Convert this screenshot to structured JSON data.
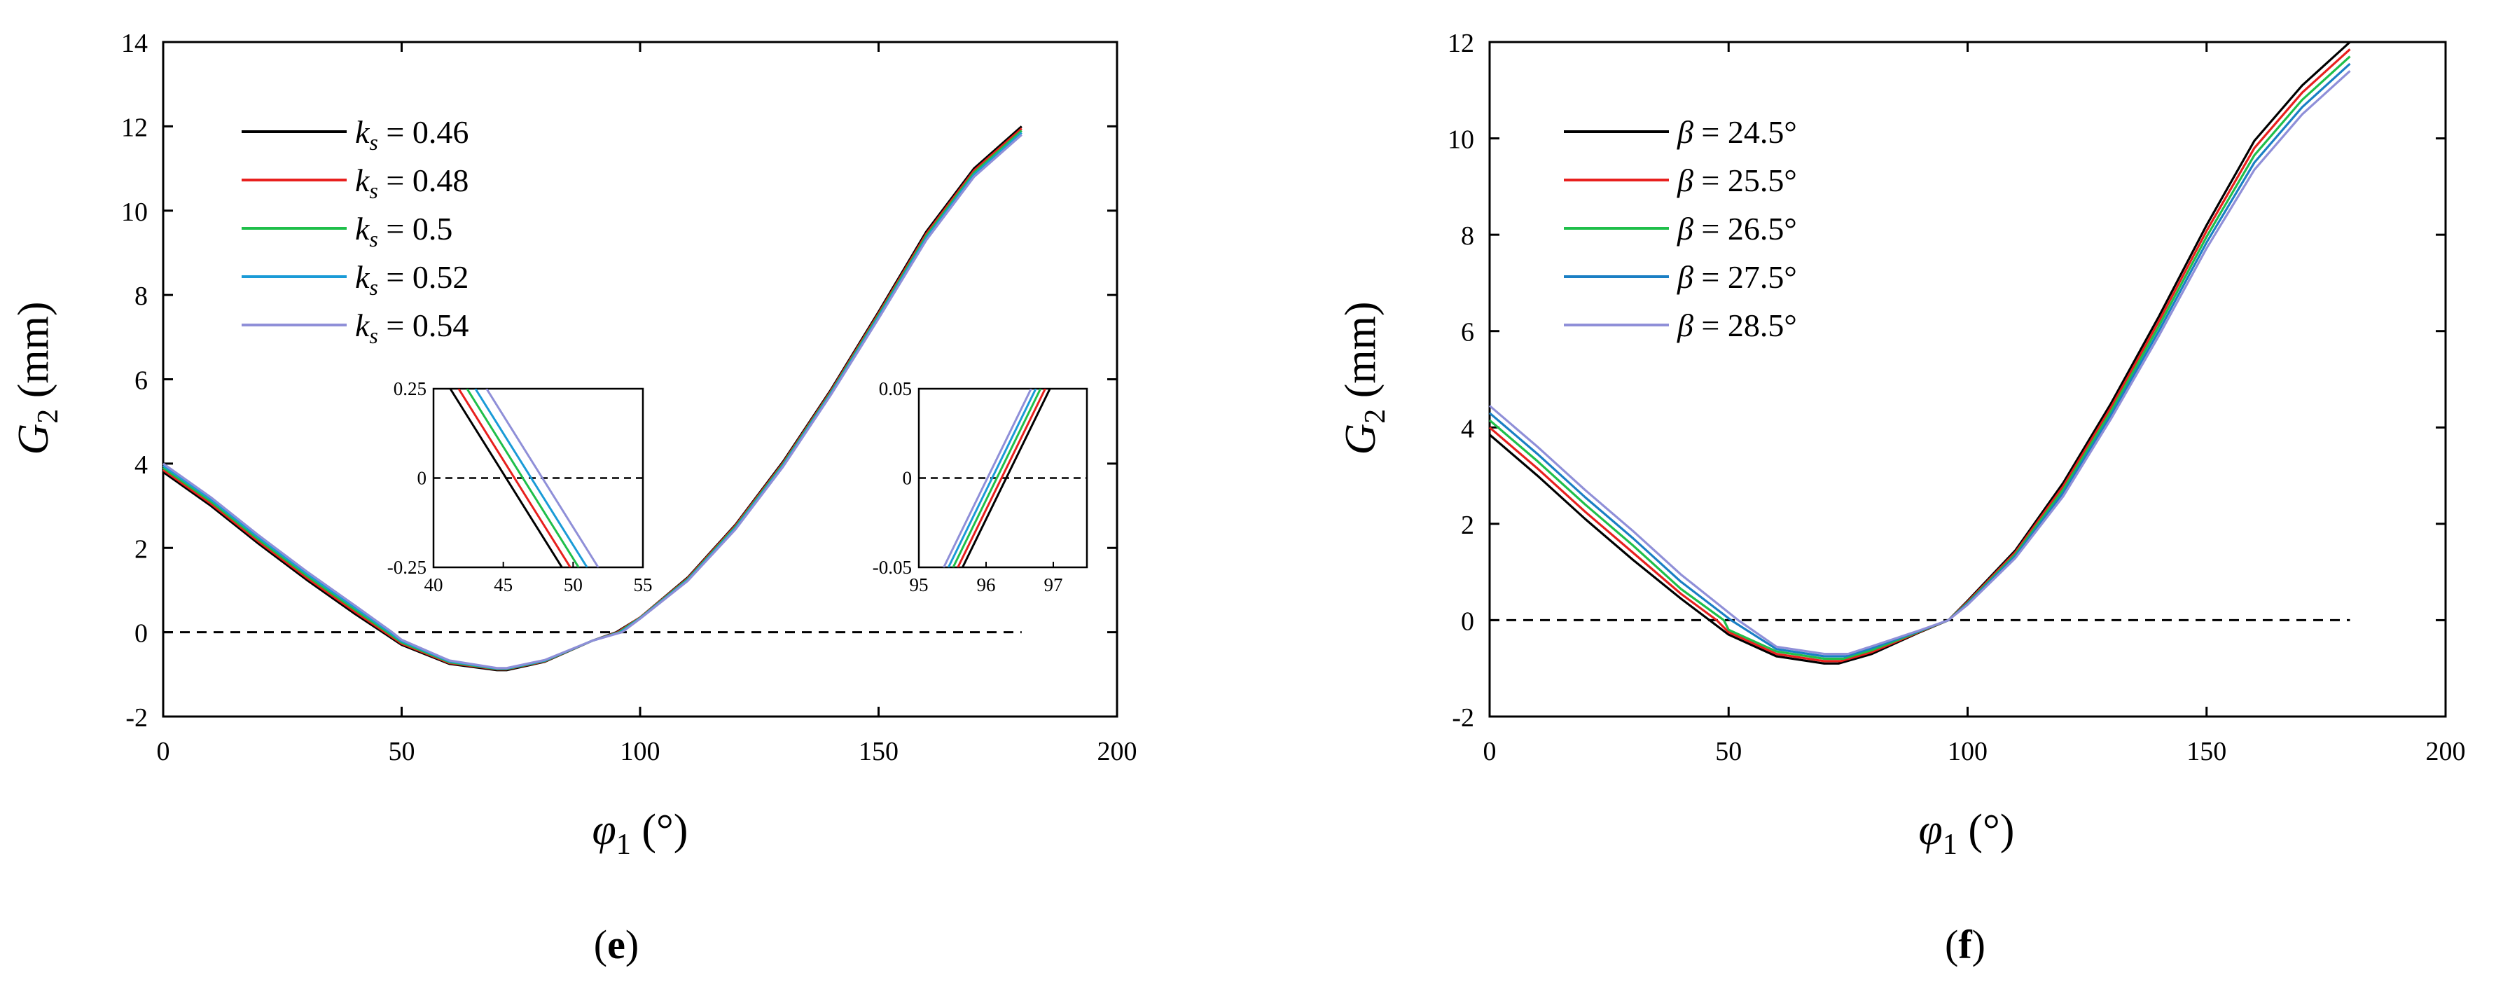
{
  "chart_data": [
    {
      "type": "line",
      "panel_label": {
        "open": "(",
        "letter": "e",
        "close": ")"
      },
      "xlabel": {
        "symbol": "φ",
        "sub": "1",
        "unit": "(°)"
      },
      "ylabel": {
        "symbol": "G",
        "sub": "2",
        "unit": "(mm)"
      },
      "xlim": [
        0,
        200
      ],
      "ylim": [
        -2,
        14
      ],
      "xticks": [
        0,
        50,
        100,
        150,
        200
      ],
      "yticks": [
        -2,
        0,
        2,
        4,
        6,
        8,
        10,
        12,
        14
      ],
      "grid": false,
      "legend_position": "top-left",
      "reference_line": {
        "y": 0,
        "style": "dashed",
        "x_range": [
          0,
          180
        ]
      },
      "series": [
        {
          "name": "k_s = 0.46",
          "sym": "k",
          "sub": "s",
          "eq": "= 0.46",
          "color": "#000000",
          "x": [
            0,
            10,
            20,
            30,
            40,
            46,
            50,
            60,
            70,
            72,
            80,
            90,
            95,
            100,
            110,
            120,
            130,
            140,
            150,
            160,
            170,
            180
          ],
          "y": [
            3.8,
            3.0,
            2.1,
            1.25,
            0.45,
            0.0,
            -0.3,
            -0.75,
            -0.9,
            -0.9,
            -0.7,
            -0.2,
            0.0,
            0.35,
            1.3,
            2.55,
            4.05,
            5.75,
            7.6,
            9.5,
            11.0,
            12.0
          ]
        },
        {
          "name": "k_s = 0.48",
          "sym": "k",
          "sub": "s",
          "eq": "= 0.48",
          "color": "#e8201e",
          "x": [
            0,
            10,
            20,
            30,
            40,
            46.5,
            50,
            60,
            70,
            72,
            80,
            90,
            95.3,
            100,
            110,
            120,
            130,
            140,
            150,
            160,
            170,
            180
          ],
          "y": [
            3.85,
            3.05,
            2.15,
            1.3,
            0.5,
            0.0,
            -0.27,
            -0.73,
            -0.88,
            -0.88,
            -0.69,
            -0.2,
            0.0,
            0.35,
            1.28,
            2.53,
            4.02,
            5.72,
            7.56,
            9.45,
            10.95,
            11.95
          ]
        },
        {
          "name": "k_s = 0.5",
          "sym": "k",
          "sub": "s",
          "eq": "= 0.5",
          "color": "#1fbf4a",
          "x": [
            0,
            10,
            20,
            30,
            40,
            47,
            50,
            60,
            70,
            72,
            80,
            90,
            95.6,
            100,
            110,
            120,
            130,
            140,
            150,
            160,
            170,
            180
          ],
          "y": [
            3.9,
            3.1,
            2.2,
            1.35,
            0.55,
            0.0,
            -0.24,
            -0.71,
            -0.87,
            -0.87,
            -0.68,
            -0.2,
            0.0,
            0.34,
            1.26,
            2.5,
            3.99,
            5.69,
            7.52,
            9.4,
            10.9,
            11.9
          ]
        },
        {
          "name": "k_s = 0.52",
          "sym": "k",
          "sub": "s",
          "eq": "= 0.52",
          "color": "#1a9bd7",
          "x": [
            0,
            10,
            20,
            30,
            40,
            47.5,
            50,
            60,
            70,
            72,
            80,
            90,
            95.9,
            100,
            110,
            120,
            130,
            140,
            150,
            160,
            170,
            180
          ],
          "y": [
            3.95,
            3.15,
            2.25,
            1.4,
            0.6,
            0.0,
            -0.21,
            -0.69,
            -0.86,
            -0.86,
            -0.67,
            -0.2,
            0.0,
            0.33,
            1.24,
            2.47,
            3.96,
            5.66,
            7.48,
            9.35,
            10.85,
            11.85
          ]
        },
        {
          "name": "k_s = 0.54",
          "sym": "k",
          "sub": "s",
          "eq": "= 0.54",
          "color": "#8f8fd8",
          "x": [
            0,
            10,
            20,
            30,
            40,
            48,
            50,
            60,
            70,
            72,
            80,
            90,
            96.2,
            100,
            110,
            120,
            130,
            140,
            150,
            160,
            170,
            180
          ],
          "y": [
            4.0,
            3.2,
            2.3,
            1.45,
            0.65,
            0.0,
            -0.18,
            -0.67,
            -0.85,
            -0.85,
            -0.66,
            -0.2,
            0.0,
            0.32,
            1.22,
            2.44,
            3.93,
            5.63,
            7.44,
            9.3,
            10.8,
            11.8
          ]
        }
      ],
      "insets": [
        {
          "xlim": [
            40,
            55
          ],
          "ylim": [
            -0.25,
            0.25
          ],
          "xticks": [
            40,
            45,
            50,
            55
          ],
          "yticks": [
            -0.25,
            0,
            0.25
          ],
          "reference_line": {
            "y": 0,
            "style": "dashed"
          },
          "lines": [
            {
              "color": "#000000",
              "x": [
                41.2,
                49.2
              ],
              "y": [
                0.25,
                -0.25
              ]
            },
            {
              "color": "#e8201e",
              "x": [
                41.8,
                49.8
              ],
              "y": [
                0.25,
                -0.25
              ]
            },
            {
              "color": "#1fbf4a",
              "x": [
                42.4,
                50.4
              ],
              "y": [
                0.25,
                -0.25
              ]
            },
            {
              "color": "#1a9bd7",
              "x": [
                43.0,
                51.0
              ],
              "y": [
                0.25,
                -0.25
              ]
            },
            {
              "color": "#8f8fd8",
              "x": [
                43.8,
                51.8
              ],
              "y": [
                0.25,
                -0.25
              ]
            }
          ]
        },
        {
          "xlim": [
            95,
            97.5
          ],
          "ylim": [
            -0.05,
            0.05
          ],
          "xticks": [
            95,
            96,
            97
          ],
          "yticks": [
            -0.05,
            0,
            0.05
          ],
          "reference_line": {
            "y": 0,
            "style": "dashed"
          },
          "lines": [
            {
              "color": "#000000",
              "x": [
                95.65,
                96.95
              ],
              "y": [
                -0.05,
                0.05
              ]
            },
            {
              "color": "#e8201e",
              "x": [
                95.58,
                96.88
              ],
              "y": [
                -0.05,
                0.05
              ]
            },
            {
              "color": "#1fbf4a",
              "x": [
                95.51,
                96.81
              ],
              "y": [
                -0.05,
                0.05
              ]
            },
            {
              "color": "#1a9bd7",
              "x": [
                95.44,
                96.74
              ],
              "y": [
                -0.05,
                0.05
              ]
            },
            {
              "color": "#8f8fd8",
              "x": [
                95.37,
                96.67
              ],
              "y": [
                -0.05,
                0.05
              ]
            }
          ]
        }
      ]
    },
    {
      "type": "line",
      "panel_label": {
        "open": "(",
        "letter": "f",
        "close": ")"
      },
      "xlabel": {
        "symbol": "φ",
        "sub": "1",
        "unit": "(°)"
      },
      "ylabel": {
        "symbol": "G",
        "sub": "2",
        "unit": "(mm)"
      },
      "xlim": [
        0,
        200
      ],
      "ylim": [
        -2,
        12
      ],
      "xticks": [
        0,
        50,
        100,
        150,
        200
      ],
      "yticks": [
        -2,
        0,
        2,
        4,
        6,
        8,
        10,
        12
      ],
      "grid": false,
      "legend_position": "top-left",
      "reference_line": {
        "y": 0,
        "style": "dashed",
        "x_range": [
          0,
          180
        ]
      },
      "series": [
        {
          "name": "β = 24.5°",
          "sym": "β",
          "sub": "",
          "eq": "= 24.5°",
          "color": "#000000",
          "x": [
            0,
            10,
            20,
            30,
            40,
            46,
            50,
            60,
            70,
            73,
            80,
            90,
            96,
            100,
            110,
            120,
            130,
            140,
            150,
            160,
            170,
            180
          ],
          "y": [
            3.85,
            3.0,
            2.1,
            1.25,
            0.45,
            0.0,
            -0.3,
            -0.75,
            -0.9,
            -0.9,
            -0.7,
            -0.25,
            0.0,
            0.4,
            1.45,
            2.85,
            4.5,
            6.3,
            8.2,
            9.95,
            11.1,
            12.0
          ]
        },
        {
          "name": "β = 25.5°",
          "sym": "β",
          "sub": "",
          "eq": "= 25.5°",
          "color": "#e8201e",
          "x": [
            0,
            10,
            20,
            30,
            40,
            47.5,
            50,
            60,
            70,
            73.5,
            80,
            90,
            96,
            100,
            110,
            120,
            130,
            140,
            150,
            160,
            170,
            180
          ],
          "y": [
            4.0,
            3.15,
            2.25,
            1.4,
            0.55,
            0.0,
            -0.25,
            -0.7,
            -0.85,
            -0.85,
            -0.66,
            -0.24,
            0.0,
            0.38,
            1.41,
            2.78,
            4.42,
            6.2,
            8.08,
            9.8,
            10.95,
            11.85
          ]
        },
        {
          "name": "β = 26.5°",
          "sym": "β",
          "sub": "",
          "eq": "= 26.5°",
          "color": "#1fbf4a",
          "x": [
            0,
            10,
            20,
            30,
            40,
            49,
            50,
            60,
            70,
            74,
            80,
            90,
            96,
            100,
            110,
            120,
            130,
            140,
            150,
            160,
            170,
            180
          ],
          "y": [
            4.15,
            3.3,
            2.4,
            1.55,
            0.65,
            0.0,
            -0.2,
            -0.65,
            -0.8,
            -0.8,
            -0.62,
            -0.23,
            0.0,
            0.36,
            1.37,
            2.71,
            4.34,
            6.1,
            7.96,
            9.65,
            10.8,
            11.7
          ]
        },
        {
          "name": "β = 27.5°",
          "sym": "β",
          "sub": "",
          "eq": "= 27.5°",
          "color": "#1a7fc4",
          "x": [
            0,
            10,
            20,
            30,
            40,
            50.5,
            60,
            70,
            74.5,
            80,
            90,
            96,
            100,
            110,
            120,
            130,
            140,
            150,
            160,
            170,
            180
          ],
          "y": [
            4.3,
            3.45,
            2.55,
            1.7,
            0.8,
            0.0,
            -0.6,
            -0.75,
            -0.75,
            -0.58,
            -0.22,
            0.0,
            0.34,
            1.33,
            2.64,
            4.26,
            6.0,
            7.84,
            9.5,
            10.65,
            11.55
          ]
        },
        {
          "name": "β = 28.5°",
          "sym": "β",
          "sub": "",
          "eq": "= 28.5°",
          "color": "#8f8fd8",
          "x": [
            0,
            10,
            20,
            30,
            40,
            52,
            60,
            70,
            75,
            80,
            90,
            96,
            100,
            110,
            120,
            130,
            140,
            150,
            160,
            170,
            180
          ],
          "y": [
            4.45,
            3.6,
            2.7,
            1.85,
            0.95,
            0.0,
            -0.55,
            -0.7,
            -0.7,
            -0.54,
            -0.21,
            0.0,
            0.32,
            1.29,
            2.57,
            4.18,
            5.9,
            7.72,
            9.35,
            10.5,
            11.4
          ]
        }
      ]
    }
  ]
}
